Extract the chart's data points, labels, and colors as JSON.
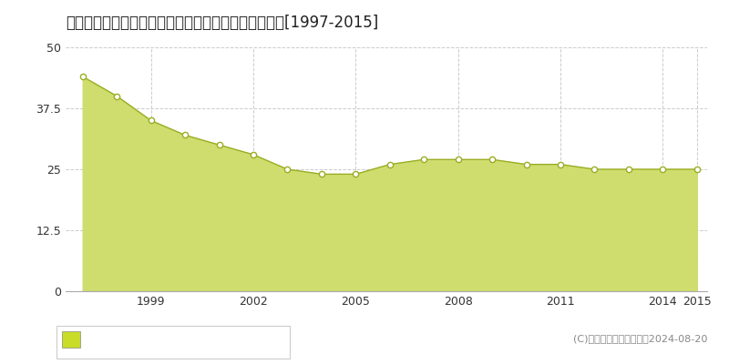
{
  "title": "茨城県つくば市西郷２５番５　基準地価格　地価推移[1997-2015]",
  "years": [
    1997,
    1998,
    1999,
    2000,
    2001,
    2002,
    2003,
    2004,
    2005,
    2006,
    2007,
    2008,
    2009,
    2010,
    2011,
    2012,
    2013,
    2014,
    2015
  ],
  "values": [
    44,
    40,
    35,
    32,
    30,
    28,
    25,
    24,
    24,
    26,
    27,
    27,
    27,
    26,
    26,
    25,
    25,
    25,
    25
  ],
  "ylim": [
    0,
    50
  ],
  "yticks": [
    0,
    12.5,
    25,
    37.5,
    50
  ],
  "xtick_years": [
    1999,
    2002,
    2005,
    2008,
    2011,
    2014,
    2015
  ],
  "fill_color": "#cedd6e",
  "line_color": "#9aad23",
  "marker_facecolor": "#ffffff",
  "marker_edgecolor": "#9aad23",
  "grid_color": "#cccccc",
  "bg_color": "#ffffff",
  "plot_bg_color": "#ffffff",
  "legend_sq_color": "#c8dc28",
  "copyright_text": "(C)土地価格ドットコム　2024-08-20",
  "title_fontsize": 12,
  "tick_fontsize": 9,
  "legend_fontsize": 9,
  "copyright_fontsize": 8
}
